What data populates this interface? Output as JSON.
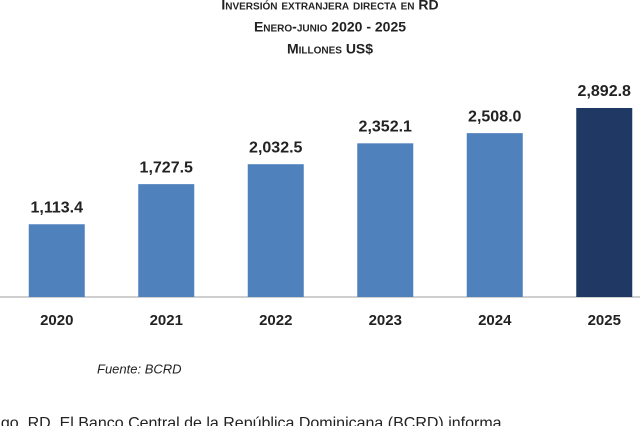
{
  "chart_data": {
    "type": "bar",
    "title": "Inversión extranjera directa en RD",
    "subtitle": "Enero-junio 2020 - 2025",
    "units_label": "Millones US$",
    "categories": [
      "2020",
      "2021",
      "2022",
      "2023",
      "2024",
      "2025"
    ],
    "values": [
      1113.4,
      1727.5,
      2032.5,
      2352.1,
      2508.0,
      2892.8
    ],
    "value_labels": [
      "1,113.4",
      "1,727.5",
      "2,032.5",
      "2,352.1",
      "2,508.0",
      "2,892.8"
    ],
    "colors": [
      "#4f81bd",
      "#4f81bd",
      "#4f81bd",
      "#4f81bd",
      "#4f81bd",
      "#1f3864"
    ],
    "source": "Fuente: BCRD",
    "footer_text": "ngo, RD. El Banco Central de la República Dominicana (BCRD) informa"
  }
}
